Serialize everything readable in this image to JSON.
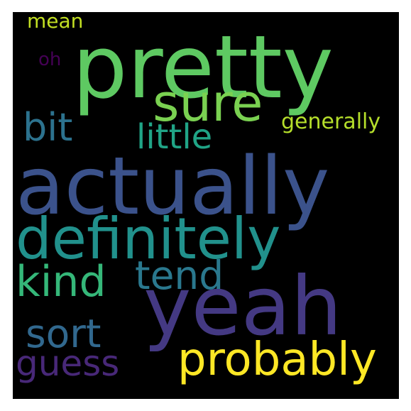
{
  "words": [
    {
      "id": "pretty",
      "text": "pretty",
      "color": "#5ec962"
    },
    {
      "id": "actually",
      "text": "actually",
      "color": "#3b528b"
    },
    {
      "id": "yeah",
      "text": "yeah",
      "color": "#443983"
    },
    {
      "id": "definitely",
      "text": "definitely",
      "color": "#21918c"
    },
    {
      "id": "sure",
      "text": "sure",
      "color": "#7ad151"
    },
    {
      "id": "probably",
      "text": "probably",
      "color": "#fde725"
    },
    {
      "id": "kind",
      "text": "kind",
      "color": "#35b779"
    },
    {
      "id": "tend",
      "text": "tend",
      "color": "#2a788e"
    },
    {
      "id": "sort",
      "text": "sort",
      "color": "#31688e"
    },
    {
      "id": "guess",
      "text": "guess",
      "color": "#482878"
    },
    {
      "id": "bit",
      "text": "bit",
      "color": "#2c728e"
    },
    {
      "id": "little",
      "text": "little",
      "color": "#20a486"
    },
    {
      "id": "generally",
      "text": "generally",
      "color": "#b5de2b"
    },
    {
      "id": "mean",
      "text": "mean",
      "color": "#c2df23"
    },
    {
      "id": "oh",
      "text": "oh",
      "color": "#440154"
    }
  ]
}
